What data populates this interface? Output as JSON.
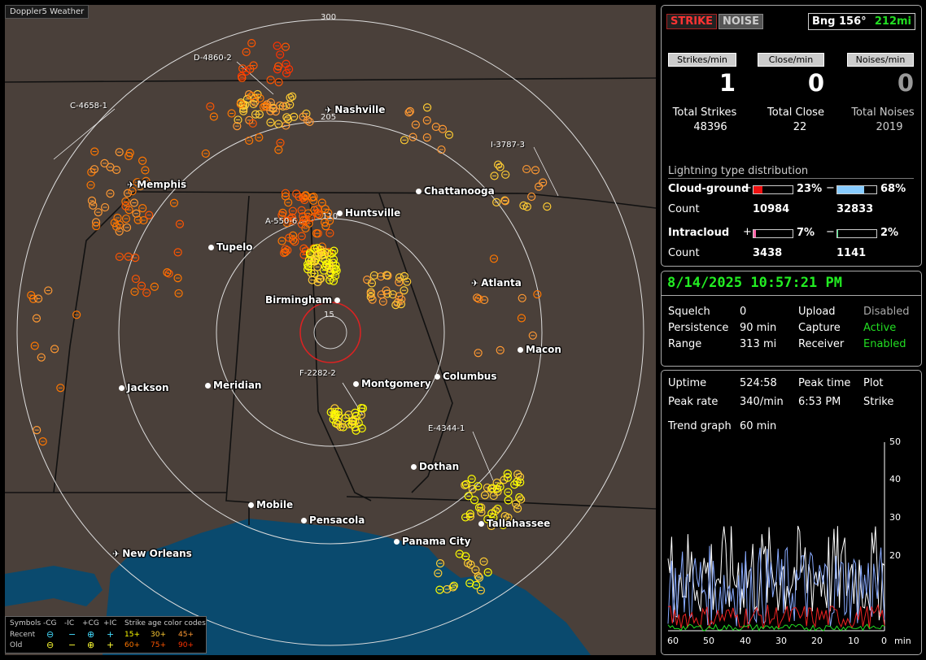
{
  "app_title": "Doppler5 Weather",
  "map": {
    "ring_labels": [
      "300",
      "205",
      "110",
      "15"
    ],
    "cities": [
      {
        "name": "Nashville",
        "kind": "airport"
      },
      {
        "name": "Memphis",
        "kind": "airport"
      },
      {
        "name": "Chattanooga",
        "kind": "city"
      },
      {
        "name": "Huntsville",
        "kind": "city"
      },
      {
        "name": "Tupelo",
        "kind": "city"
      },
      {
        "name": "Atlanta",
        "kind": "airport"
      },
      {
        "name": "Birmingham",
        "kind": "city"
      },
      {
        "name": "Macon",
        "kind": "city"
      },
      {
        "name": "Jackson",
        "kind": "airport"
      },
      {
        "name": "Meridian",
        "kind": "city"
      },
      {
        "name": "Montgomery",
        "kind": "city"
      },
      {
        "name": "Columbus",
        "kind": "city"
      },
      {
        "name": "Dothan",
        "kind": "city"
      },
      {
        "name": "Mobile",
        "kind": "city"
      },
      {
        "name": "Pensacola",
        "kind": "city"
      },
      {
        "name": "Tallahassee",
        "kind": "city"
      },
      {
        "name": "Panama City",
        "kind": "city"
      },
      {
        "name": "New Orleans",
        "kind": "airport"
      }
    ],
    "cells": [
      "D-4860-2",
      "C-4658-1",
      "I-3787-3",
      "A-550-6",
      "F-2282-2",
      "E-4344-1"
    ]
  },
  "legend": {
    "symbols_label": "Symbols",
    "headers": [
      "-CG",
      "-IC",
      "+CG",
      "+IC"
    ],
    "age_label": "Strike age color codes",
    "recent_label": "Recent",
    "old_label": "Old",
    "recent_ages": [
      "15+",
      "30+",
      "45+"
    ],
    "old_ages": [
      "60+",
      "75+",
      "90+"
    ],
    "age_colors": [
      "#ffff00",
      "#ffcc33",
      "#ff9933",
      "#ff7700",
      "#ff5500",
      "#ff3300"
    ]
  },
  "top_panel": {
    "strike_btn": "STRIKE",
    "noise_btn": "NOISE",
    "bearing": "Bng 156°",
    "distance": "212mi",
    "rate_buttons": [
      "Strikes/min",
      "Close/min",
      "Noises/min"
    ],
    "rates": [
      "1",
      "0",
      "0"
    ],
    "totals_labels": [
      "Total Strikes",
      "Total Close",
      "Total Noises"
    ],
    "totals_values": [
      "48396",
      "22",
      "2019"
    ],
    "distribution_title": "Lightning type distribution",
    "cloud_ground_label": "Cloud-ground",
    "intracloud_label": "Intracloud",
    "count_label": "Count",
    "plus": "+",
    "minus": "−",
    "cg_pos_pct": "23%",
    "cg_neg_pct": "68%",
    "cg_pos_count": "10984",
    "cg_neg_count": "32833",
    "ic_pos_pct": "7%",
    "ic_neg_pct": "2%",
    "ic_pos_count": "3438",
    "ic_neg_count": "1141",
    "cg_pos_fill": 0.23,
    "cg_neg_fill": 0.68,
    "ic_pos_fill": 0.07,
    "ic_neg_fill": 0.02,
    "colors": {
      "cg_pos": "#ee1111",
      "cg_neg": "#88ccff",
      "ic_pos": "#ff66aa",
      "ic_neg": "#44ee88"
    }
  },
  "status_panel": {
    "datetime": "8/14/2025 10:57:21 PM",
    "rows": [
      {
        "label": "Squelch",
        "value": "0",
        "label2": "Upload",
        "value2": "Disabled"
      },
      {
        "label": "Persistence",
        "value": "90 min",
        "label2": "Capture",
        "value2": "Active"
      },
      {
        "label": "Range",
        "value": "313 mi",
        "label2": "Receiver",
        "value2": "Enabled"
      }
    ]
  },
  "trend_panel": {
    "uptime_label": "Uptime",
    "uptime": "524:58",
    "peak_time_label": "Peak time",
    "plot_label": "Plot",
    "peak_rate_label": "Peak rate",
    "peak_rate": "340/min",
    "peak_time": "6:53 PM",
    "plot_value": "Strike",
    "trend_label": "Trend graph",
    "trend_value": "60 min",
    "y_ticks": [
      "50",
      "40",
      "30",
      "20"
    ],
    "x_ticks": [
      "60",
      "50",
      "40",
      "30",
      "20",
      "10",
      "0"
    ],
    "x_unit": "min"
  }
}
